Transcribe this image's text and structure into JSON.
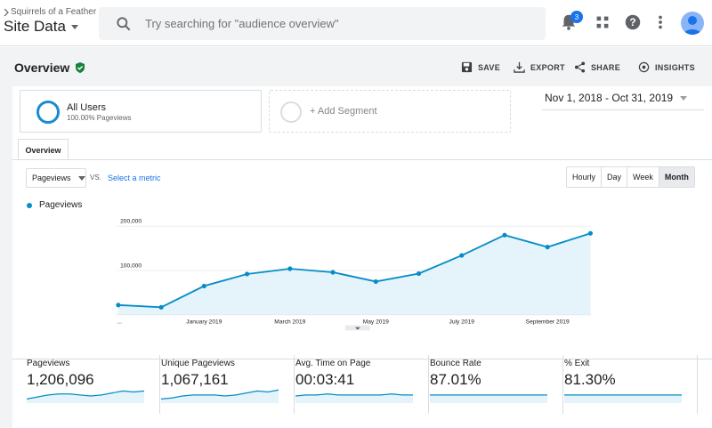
{
  "header": {
    "account_breadcrumb": "Squirrels of a Feather",
    "property": "Site Data",
    "search_placeholder": "Try searching for \"audience overview\"",
    "notification_count": "3"
  },
  "overview": {
    "title": "Overview",
    "actions": {
      "save": "SAVE",
      "export": "EXPORT",
      "share": "SHARE",
      "insights": "INSIGHTS"
    }
  },
  "segments": {
    "all_users": {
      "title": "All Users",
      "subtitle": "100.00% Pageviews"
    },
    "add_segment": "+ Add Segment"
  },
  "date_range": "Nov 1, 2018 - Oct 31, 2019",
  "tabs": [
    {
      "label": "Overview"
    }
  ],
  "controls": {
    "metric": "Pageviews",
    "vs": "VS.",
    "select_metric": "Select a metric",
    "granularity": [
      "Hourly",
      "Day",
      "Week",
      "Month"
    ],
    "selected_granularity": "Month"
  },
  "chart_data": {
    "type": "area",
    "series": [
      {
        "name": "Pageviews",
        "values": [
          22000,
          17000,
          65000,
          92000,
          104000,
          96000,
          75000,
          93000,
          134000,
          180000,
          153000,
          184000
        ]
      }
    ],
    "x": [
      "Nov 2018",
      "Dec 2018",
      "Jan 2019",
      "Feb 2019",
      "Mar 2019",
      "Apr 2019",
      "May 2019",
      "Jun 2019",
      "Jul 2019",
      "Aug 2019",
      "Sep 2019",
      "Oct 2019"
    ],
    "x_tick_labels": [
      "...",
      "January 2019",
      "March 2019",
      "May 2019",
      "July 2019",
      "September 2019"
    ],
    "y_tick_labels": [
      "200,000",
      "100,000"
    ],
    "ylim": [
      0,
      200000
    ],
    "grid": true,
    "color": "#058dc7",
    "fill": "#e5f3fa"
  },
  "metrics": [
    {
      "label": "Pageviews",
      "value": "1,206,096",
      "spark": [
        5,
        7,
        9,
        10,
        10,
        9,
        8,
        9,
        11,
        13,
        12,
        13
      ]
    },
    {
      "label": "Unique Pageviews",
      "value": "1,067,161",
      "spark": [
        5,
        6,
        8,
        9,
        9,
        9,
        8,
        9,
        11,
        13,
        12,
        14
      ]
    },
    {
      "label": "Avg. Time on Page",
      "value": "00:03:41",
      "spark": [
        8,
        9,
        9,
        10,
        9,
        9,
        9,
        9,
        9,
        10,
        9,
        9
      ]
    },
    {
      "label": "Bounce Rate",
      "value": "87.01%",
      "spark": [
        9,
        9,
        9,
        9,
        9,
        9,
        9,
        9,
        9,
        9,
        9,
        9
      ]
    },
    {
      "label": "% Exit",
      "value": "81.30%",
      "spark": [
        9,
        9,
        9,
        9,
        9,
        9,
        9,
        9,
        9,
        9,
        9,
        9
      ]
    }
  ]
}
